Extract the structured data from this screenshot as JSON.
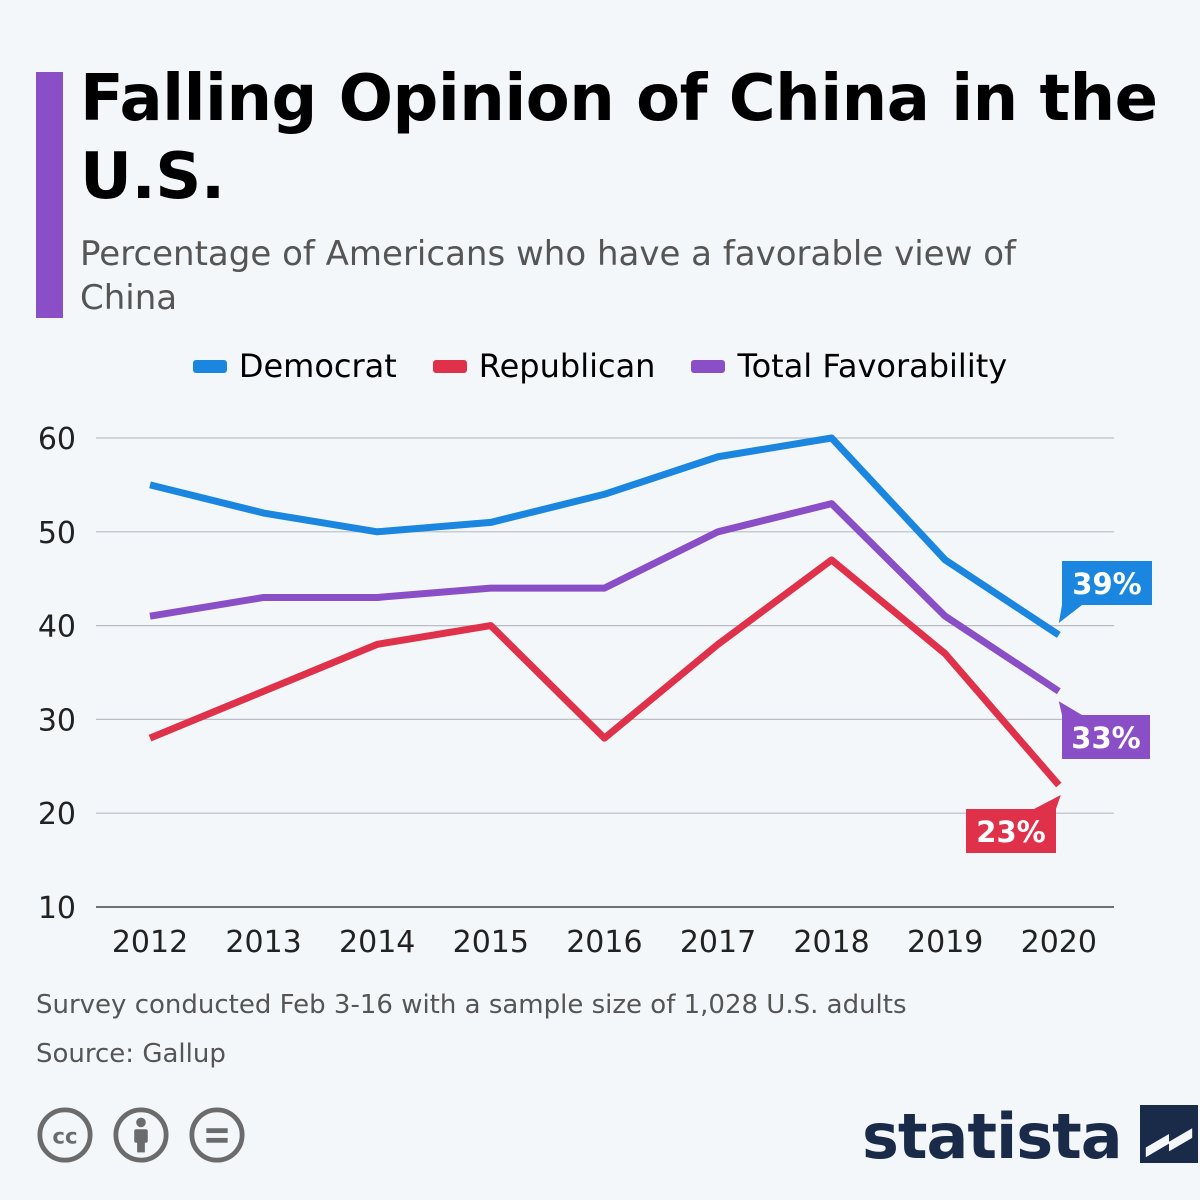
{
  "title": "Falling Opinion of China in the U.S.",
  "subtitle": "Percentage of Americans who have a favorable view of China",
  "chart_data": {
    "type": "line",
    "x": [
      "2012",
      "2013",
      "2014",
      "2015",
      "2016",
      "2017",
      "2018",
      "2019",
      "2020"
    ],
    "ylim": [
      10,
      60
    ],
    "yticks": [
      10,
      20,
      30,
      40,
      50,
      60
    ],
    "grid": true,
    "legend_position": "top",
    "series": [
      {
        "name": "Democrat",
        "color": "#1a86e0",
        "values": [
          55,
          52,
          50,
          51,
          54,
          58,
          60,
          47,
          39
        ],
        "end_label": "39%"
      },
      {
        "name": "Republican",
        "color": "#e0314b",
        "values": [
          28,
          33,
          38,
          40,
          28,
          38,
          47,
          37,
          23
        ],
        "end_label": "23%"
      },
      {
        "name": "Total Favorability",
        "color": "#8a4fc7",
        "values": [
          41,
          43,
          43,
          44,
          44,
          50,
          53,
          41,
          33
        ],
        "end_label": "33%"
      }
    ]
  },
  "footnote": "Survey conducted Feb 3-16 with a sample size of 1,028 U.S. adults",
  "source": "Source: Gallup",
  "brand": "statista",
  "license_icons": [
    "cc-icon",
    "attribution-icon",
    "no-derivatives-icon"
  ]
}
